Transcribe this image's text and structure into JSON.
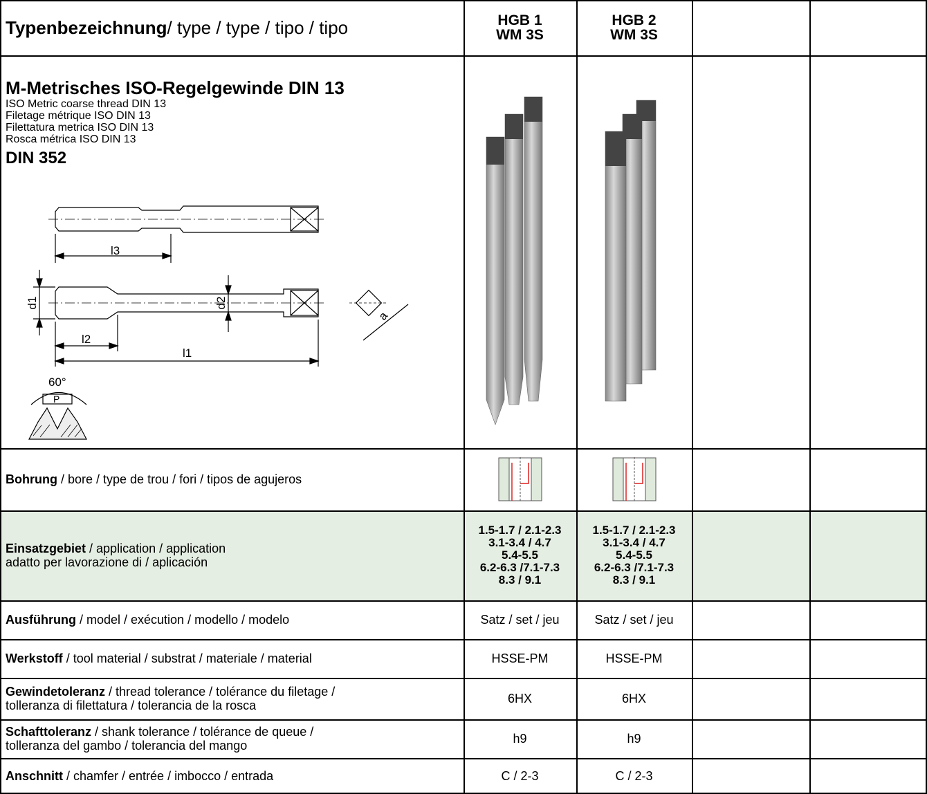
{
  "header": {
    "title_bold": "Typenbezeichnung",
    "title_rest": " / type / type / tipo / tipo",
    "columns": [
      [
        "HGB 1",
        "WM 3S"
      ],
      [
        "HGB 2",
        "WM 3S"
      ]
    ]
  },
  "product": {
    "title": "M-Metrisches ISO-Regelgewinde DIN 13",
    "subtitles": [
      "ISO Metric coarse thread DIN 13",
      "Filetage métrique ISO DIN 13",
      "Filettatura metrica ISO DIN 13",
      "Rosca métrica ISO DIN 13"
    ],
    "standard": "DIN 352",
    "diagram_labels": {
      "l3": "l3",
      "d1": "d1",
      "d2": "d2",
      "l2": "l2",
      "l1": "l1",
      "a": "a",
      "angle": "60°",
      "pitch": "P"
    }
  },
  "rows": [
    {
      "label_bold": "Bohrung",
      "label_rest": [
        " / bore / type de trou / fori / tipos de agujeros"
      ]
    },
    {
      "label_bold": "Einsatzgebiet",
      "label_rest": [
        " / application / application",
        "adatto per lavorazione di / aplicación"
      ],
      "values": [
        [
          "1.5-1.7 / 2.1-2.3",
          "3.1-3.4 / 4.7",
          "5.4-5.5",
          "6.2-6.3 /7.1-7.3",
          "8.3 / 9.1"
        ],
        [
          "1.5-1.7 / 2.1-2.3",
          "3.1-3.4 / 4.7",
          "5.4-5.5",
          "6.2-6.3 /7.1-7.3",
          "8.3 / 9.1"
        ]
      ]
    },
    {
      "label_bold": "Ausführung",
      "label_rest": [
        " / model / exécution / modello / modelo"
      ],
      "values": [
        "Satz / set / jeu",
        "Satz / set / jeu"
      ]
    },
    {
      "label_bold": "Werkstoff",
      "label_rest": [
        " / tool material / substrat / materiale / material"
      ],
      "values": [
        "HSSE-PM",
        "HSSE-PM"
      ]
    },
    {
      "label_bold": "Gewindetoleranz",
      "label_rest": [
        " / thread tolerance / tolérance du filetage /",
        "tolleranza di filettatura / tolerancia de la rosca"
      ],
      "values": [
        "6HX",
        "6HX"
      ]
    },
    {
      "label_bold": "Schafttoleranz",
      "label_rest": [
        " / shank tolerance / tolérance de queue /",
        "tolleranza del gambo / tolerancia del mango"
      ],
      "values": [
        "h9",
        "h9"
      ]
    },
    {
      "label_bold": "Anschnitt",
      "label_rest": [
        " / chamfer / entrée / imbocco / entrada"
      ],
      "values": [
        "C / 2-3",
        "C / 2-3"
      ]
    }
  ]
}
